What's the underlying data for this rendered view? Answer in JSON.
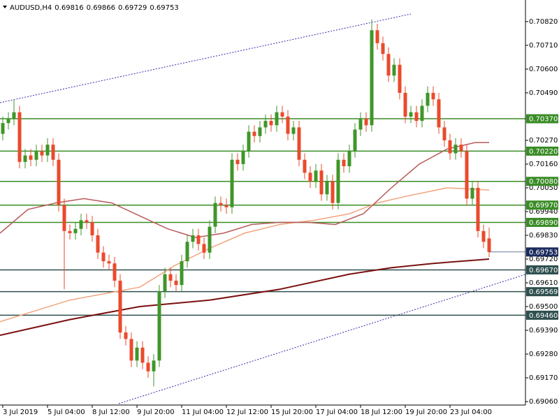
{
  "chart_data": {
    "type": "candlestick",
    "symbol": "AUDUSD,H4",
    "categories": [
      "3 Jul 2019",
      null,
      null,
      null,
      null,
      null,
      null,
      null,
      "5 Jul 04:00",
      null,
      null,
      null,
      null,
      null,
      null,
      null,
      "8 Jul 12:00",
      null,
      null,
      null,
      null,
      null,
      null,
      null,
      "9 Jul 20:00",
      null,
      null,
      null,
      null,
      null,
      null,
      null,
      "11 Jul 04:00",
      null,
      null,
      null,
      null,
      null,
      null,
      null,
      "12 Jul 12:00",
      null,
      null,
      null,
      null,
      null,
      null,
      null,
      "15 Jul 20:00",
      null,
      null,
      null,
      null,
      null,
      null,
      null,
      "17 Jul 04:00",
      null,
      null,
      null,
      null,
      null,
      null,
      null,
      "18 Jul 12:00",
      null,
      null,
      null,
      null,
      null,
      null,
      null,
      "19 Jul 20:00",
      null,
      null,
      null,
      null,
      null,
      null,
      null,
      "23 Jul 04:00",
      null,
      null,
      null,
      null,
      null,
      null,
      null
    ],
    "open": [
      0.703,
      0.7035,
      0.7037,
      0.704,
      0.7017,
      0.702,
      0.7018,
      0.7022,
      0.702,
      0.7025,
      0.7018,
      0.6997,
      0.6985,
      0.6984,
      0.6986,
      0.699,
      0.6989,
      0.6983,
      0.6975,
      0.6971,
      0.697,
      0.6962,
      0.6938,
      0.6935,
      0.6925,
      0.6931,
      0.6924,
      0.692,
      0.6925,
      0.6957,
      0.6965,
      0.6962,
      0.696,
      0.6971,
      0.698,
      0.6983,
      0.6979,
      0.6975,
      0.6987,
      0.6998,
      0.6997,
      0.6996,
      0.7018,
      0.7016,
      0.7022,
      0.7031,
      0.7029,
      0.7033,
      0.7036,
      0.7034,
      0.704,
      0.7038,
      0.703,
      0.7033,
      0.7018,
      0.7012,
      0.7008,
      0.7013,
      0.7002,
      0.7008,
      0.6998,
      0.7018,
      0.7015,
      0.7022,
      0.7032,
      0.7037,
      0.7034,
      0.7078,
      0.7072,
      0.7067,
      0.7057,
      0.7062,
      0.7049,
      0.7038,
      0.704,
      0.7036,
      0.7043,
      0.7049,
      0.7046,
      0.7033,
      0.7027,
      0.7021,
      0.7025,
      0.7022,
      0.7,
      0.7005,
      0.6985,
      0.69816
    ],
    "high": [
      0.7038,
      0.704,
      0.7046,
      0.7043,
      0.7023,
      0.7023,
      0.7025,
      0.7025,
      0.7028,
      0.7028,
      0.7021,
      0.7,
      0.6988,
      0.6989,
      0.6993,
      0.6993,
      0.6992,
      0.6986,
      0.6978,
      0.6974,
      0.6973,
      0.6965,
      0.6941,
      0.6938,
      0.6934,
      0.6934,
      0.6927,
      0.6928,
      0.696,
      0.6968,
      0.6968,
      0.6965,
      0.6974,
      0.6983,
      0.6986,
      0.6986,
      0.6982,
      0.699,
      0.7001,
      0.7001,
      0.7,
      0.7021,
      0.7021,
      0.7025,
      0.7034,
      0.7034,
      0.7036,
      0.7039,
      0.7039,
      0.7043,
      0.7043,
      0.7041,
      0.7036,
      0.7036,
      0.7021,
      0.7015,
      0.7016,
      0.7016,
      0.7011,
      0.7011,
      0.7021,
      0.7021,
      0.7025,
      0.7035,
      0.704,
      0.704,
      0.7083,
      0.7081,
      0.7075,
      0.707,
      0.7065,
      0.7065,
      0.7052,
      0.7043,
      0.7043,
      0.7046,
      0.7052,
      0.7052,
      0.7049,
      0.7036,
      0.703,
      0.7028,
      0.7028,
      0.7025,
      0.7008,
      0.7008,
      0.6988,
      0.69866
    ],
    "low": [
      0.7027,
      0.7032,
      0.7034,
      0.7014,
      0.7014,
      0.7015,
      0.7015,
      0.7017,
      0.7017,
      0.7015,
      0.6994,
      0.6958,
      0.6981,
      0.6981,
      0.6983,
      0.6986,
      0.698,
      0.6972,
      0.6968,
      0.6967,
      0.6959,
      0.6935,
      0.6932,
      0.6922,
      0.6922,
      0.6921,
      0.6917,
      0.6913,
      0.6922,
      0.6954,
      0.6959,
      0.6957,
      0.6957,
      0.6968,
      0.6977,
      0.6976,
      0.6972,
      0.6972,
      0.6984,
      0.6994,
      0.6993,
      0.6993,
      0.7013,
      0.7013,
      0.7019,
      0.7026,
      0.7026,
      0.703,
      0.7031,
      0.7031,
      0.7035,
      0.7027,
      0.7027,
      0.7015,
      0.7009,
      0.7005,
      0.7005,
      0.6999,
      0.6999,
      0.6995,
      0.6995,
      0.7012,
      0.7012,
      0.7019,
      0.7029,
      0.7031,
      0.7031,
      0.7069,
      0.7064,
      0.7054,
      0.7054,
      0.7046,
      0.7035,
      0.7035,
      0.7033,
      0.7033,
      0.704,
      0.7043,
      0.703,
      0.7024,
      0.7018,
      0.7018,
      0.7019,
      0.6997,
      0.6997,
      0.6982,
      0.6977,
      0.69729
    ],
    "close": [
      0.7035,
      0.7037,
      0.704,
      0.7017,
      0.702,
      0.7018,
      0.7022,
      0.702,
      0.7025,
      0.7018,
      0.6997,
      0.6985,
      0.6984,
      0.6986,
      0.699,
      0.6989,
      0.6983,
      0.6975,
      0.6971,
      0.697,
      0.6962,
      0.6938,
      0.6935,
      0.6925,
      0.6931,
      0.6924,
      0.692,
      0.6925,
      0.6957,
      0.6965,
      0.6962,
      0.696,
      0.6971,
      0.698,
      0.6983,
      0.6979,
      0.6975,
      0.6987,
      0.6998,
      0.6997,
      0.6996,
      0.7018,
      0.7016,
      0.7022,
      0.7031,
      0.7029,
      0.7033,
      0.7036,
      0.7034,
      0.704,
      0.7038,
      0.703,
      0.7033,
      0.7018,
      0.7012,
      0.7008,
      0.7013,
      0.7002,
      0.7008,
      0.6998,
      0.7018,
      0.7015,
      0.7022,
      0.7032,
      0.7037,
      0.7034,
      0.7078,
      0.7072,
      0.7067,
      0.7057,
      0.7062,
      0.7049,
      0.7038,
      0.704,
      0.7036,
      0.7043,
      0.7049,
      0.7046,
      0.7033,
      0.7027,
      0.7021,
      0.7025,
      0.7022,
      0.7,
      0.7005,
      0.6985,
      0.698,
      0.69753
    ],
    "up_color": "#3f9628",
    "down_color": "#ea4a2c",
    "current_color": "#1b2b5e",
    "lines": [
      {
        "color": "#7a1010",
        "x": [
          -0.5,
          12,
          24.5,
          37,
          49.5,
          62,
          69.5,
          77,
          87
        ],
        "values": [
          0.69367,
          0.6944,
          0.695,
          0.6953,
          0.6958,
          0.6965,
          0.6968,
          0.697,
          0.6972
        ]
      },
      {
        "color": "#f2a47e",
        "x": [
          -0.5,
          12,
          24.5,
          30.75,
          37,
          43.25,
          49.5,
          55.75,
          62,
          67,
          72,
          79.5,
          87
        ],
        "values": [
          0.6943,
          0.6953,
          0.6959,
          0.6969,
          0.6977,
          0.6984,
          0.6988,
          0.699,
          0.6993,
          0.6998,
          0.7001,
          0.7005,
          0.7004
        ]
      },
      {
        "color": "#b85a5a",
        "x": [
          -0.5,
          4.5,
          9.5,
          14.5,
          19.5,
          24.5,
          29.5,
          34.5,
          39.5,
          44.5,
          49.5,
          54.5,
          59.5,
          64.5,
          69.5,
          74.5,
          79.5,
          84.5,
          87
        ],
        "values": [
          0.6984,
          0.6995,
          0.6998,
          0.7,
          0.6998,
          0.6992,
          0.6986,
          0.6982,
          0.6984,
          0.6988,
          0.6989,
          0.6989,
          0.6988,
          0.6993,
          0.7005,
          0.7016,
          0.7023,
          0.7026,
          0.7026
        ]
      }
    ],
    "levels": [
      {
        "value": 0.7037,
        "label": "0.70370",
        "color": "#3a8c26"
      },
      {
        "value": 0.7022,
        "label": "0.70220",
        "color": "#3a8c26"
      },
      {
        "value": 0.7008,
        "label": "0.70080",
        "color": "#3a8c26"
      },
      {
        "value": 0.6997,
        "label": "0.69970",
        "color": "#3a8c26"
      },
      {
        "value": 0.6989,
        "label": "0.69890",
        "color": "#3a8c26"
      },
      {
        "value": 0.6967,
        "label": "0.69670",
        "color": "#2f4f4f"
      },
      {
        "value": 0.69569,
        "color": "#2f4f4f"
      },
      {
        "value": 0.6946,
        "label": "0.69460",
        "color": "#2f4f4f"
      }
    ],
    "ylim": [
      0.69044,
      0.7092
    ],
    "yticks": [
      {
        "value": 0.7082,
        "label": "0.70820"
      },
      {
        "value": 0.7071,
        "label": "0.70710"
      },
      {
        "value": 0.706,
        "label": "0.70600"
      },
      {
        "value": 0.7049,
        "label": "0.70490"
      },
      {
        "value": 0.7027,
        "label": "0.70270"
      },
      {
        "value": 0.7016,
        "label": "0.70160"
      },
      {
        "value": 0.7005,
        "label": "0.70050"
      },
      {
        "value": 0.6994,
        "label": "0.69940"
      },
      {
        "value": 0.6983,
        "label": "0.69830"
      },
      {
        "value": 0.6972,
        "label": "0.69720"
      },
      {
        "value": 0.6961,
        "label": "0.69610"
      },
      {
        "value": 0.695,
        "label": "0.69500"
      },
      {
        "value": 0.6939,
        "label": "0.69390"
      },
      {
        "value": 0.6928,
        "label": "0.69280"
      },
      {
        "value": 0.6917,
        "label": "0.69170"
      },
      {
        "value": 0.6906,
        "label": "0.69060"
      }
    ]
  }
}
